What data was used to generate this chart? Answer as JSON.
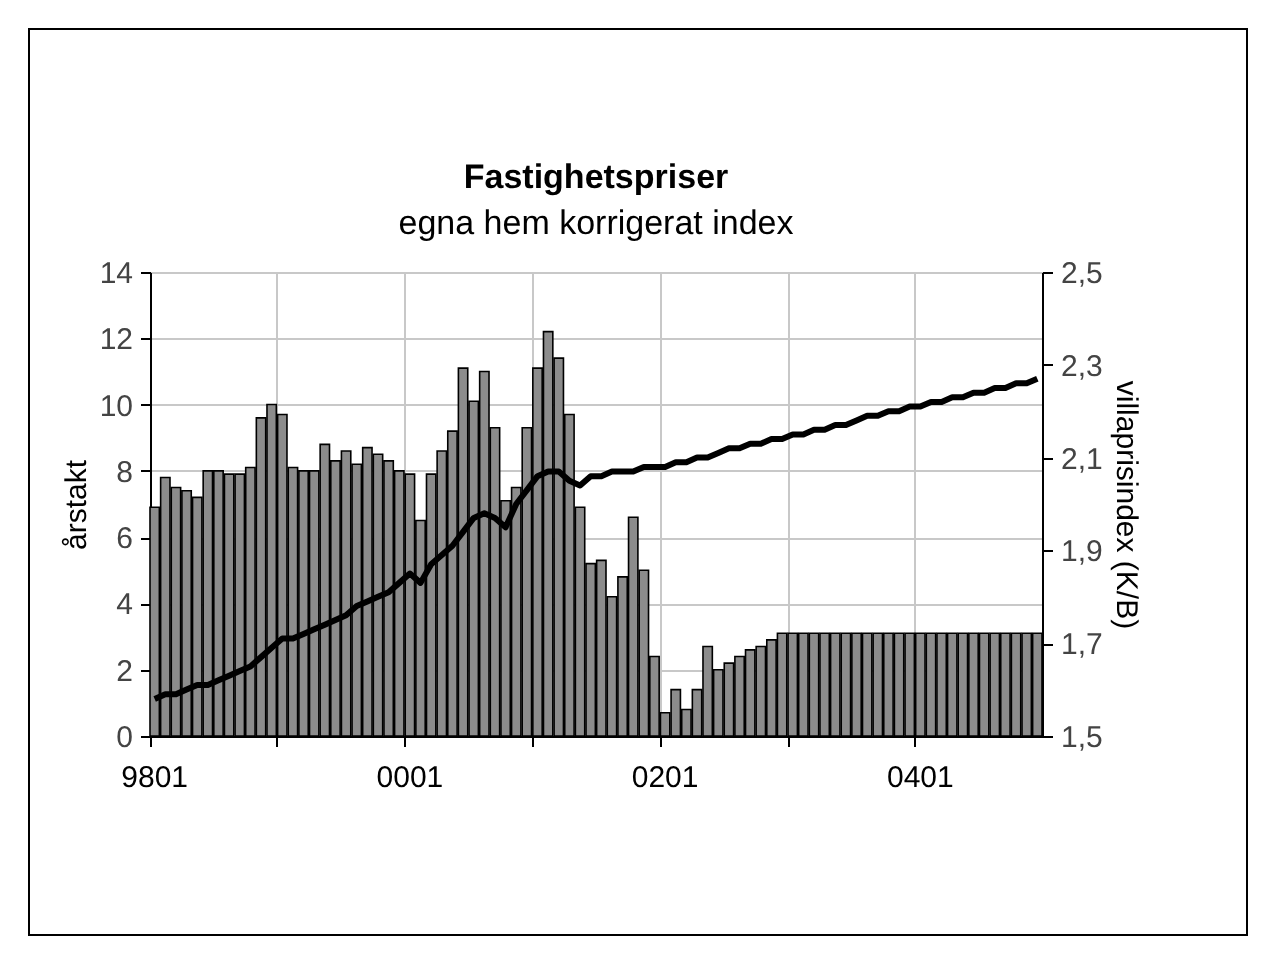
{
  "chart_data": {
    "type": "bar",
    "title": "Fastighetspriser",
    "subtitle": "egna hem korrigerat index",
    "ylabel": "årstakt",
    "y2label": "villaprisindex (K/B)",
    "categories": [
      "9801",
      null,
      null,
      null,
      null,
      null,
      null,
      null,
      null,
      null,
      null,
      null,
      null,
      null,
      null,
      null,
      null,
      null,
      null,
      null,
      null,
      null,
      null,
      null,
      "0001",
      null,
      null,
      null,
      null,
      null,
      null,
      null,
      null,
      null,
      null,
      null,
      null,
      null,
      null,
      null,
      null,
      null,
      null,
      null,
      null,
      null,
      null,
      null,
      "0201",
      null,
      null,
      null,
      null,
      null,
      null,
      null,
      null,
      null,
      null,
      null,
      null,
      null,
      null,
      null,
      null,
      null,
      null,
      null,
      null,
      null,
      null,
      null,
      "0401",
      null,
      null,
      null,
      null,
      null,
      null,
      null,
      null,
      null,
      null,
      null
    ],
    "series": [
      {
        "color": "#8c8c8c",
        "values": [
          6.9,
          7.8,
          7.5,
          7.4,
          7.2,
          8.0,
          8.0,
          7.9,
          7.9,
          8.1,
          9.6,
          10.0,
          9.7,
          8.1,
          8.0,
          8.0,
          8.8,
          8.3,
          8.6,
          8.2,
          8.7,
          8.5,
          8.3,
          8.0,
          7.9,
          6.5,
          7.9,
          8.6,
          9.2,
          11.1,
          10.1,
          11.0,
          9.3,
          7.1,
          7.5,
          9.3,
          11.1,
          12.2,
          11.4,
          9.7,
          6.9,
          5.2,
          5.3,
          4.2,
          4.8,
          6.6,
          5.0,
          2.4,
          0.7,
          1.4,
          0.8,
          1.4,
          2.7,
          2.0,
          2.2,
          2.4,
          2.6,
          2.7,
          2.9,
          3.1,
          3.1,
          3.1,
          3.1,
          3.1,
          3.1,
          3.1,
          3.1,
          3.1,
          3.1,
          3.1,
          3.1,
          3.1,
          3.1,
          3.1,
          3.1,
          3.1,
          3.1,
          3.1,
          3.1,
          3.1,
          3.1,
          3.1,
          3.1,
          3.1
        ]
      },
      {
        "type": "line",
        "axis": "y2",
        "color": "#000000",
        "values": [
          1.58,
          1.59,
          1.59,
          1.6,
          1.61,
          1.61,
          1.62,
          1.63,
          1.64,
          1.65,
          1.67,
          1.69,
          1.71,
          1.71,
          1.72,
          1.73,
          1.74,
          1.75,
          1.76,
          1.78,
          1.79,
          1.8,
          1.81,
          1.83,
          1.85,
          1.83,
          1.87,
          1.89,
          1.91,
          1.94,
          1.97,
          1.98,
          1.97,
          1.95,
          2.0,
          2.03,
          2.06,
          2.07,
          2.07,
          2.05,
          2.04,
          2.06,
          2.06,
          2.07,
          2.07,
          2.07,
          2.08,
          2.08,
          2.08,
          2.09,
          2.09,
          2.1,
          2.1,
          2.11,
          2.12,
          2.12,
          2.13,
          2.13,
          2.14,
          2.14,
          2.15,
          2.15,
          2.16,
          2.16,
          2.17,
          2.17,
          2.18,
          2.19,
          2.19,
          2.2,
          2.2,
          2.21,
          2.21,
          2.22,
          2.22,
          2.23,
          2.23,
          2.24,
          2.24,
          2.25,
          2.25,
          2.26,
          2.26,
          2.27
        ]
      }
    ],
    "ylim": [
      0,
      14
    ],
    "yticks": [
      0,
      2,
      4,
      6,
      8,
      10,
      12,
      14
    ],
    "y2lim": [
      1.5,
      2.5
    ],
    "y2ticks": [
      {
        "value": 1.5,
        "label": "1,5"
      },
      {
        "value": 1.7,
        "label": "1,7"
      },
      {
        "value": 1.9,
        "label": "1,9"
      },
      {
        "value": 2.1,
        "label": "2,1"
      },
      {
        "value": 2.3,
        "label": "2,3"
      },
      {
        "value": 2.5,
        "label": "2,5"
      }
    ],
    "grid": true,
    "marker": "none",
    "line_style": "solid"
  }
}
